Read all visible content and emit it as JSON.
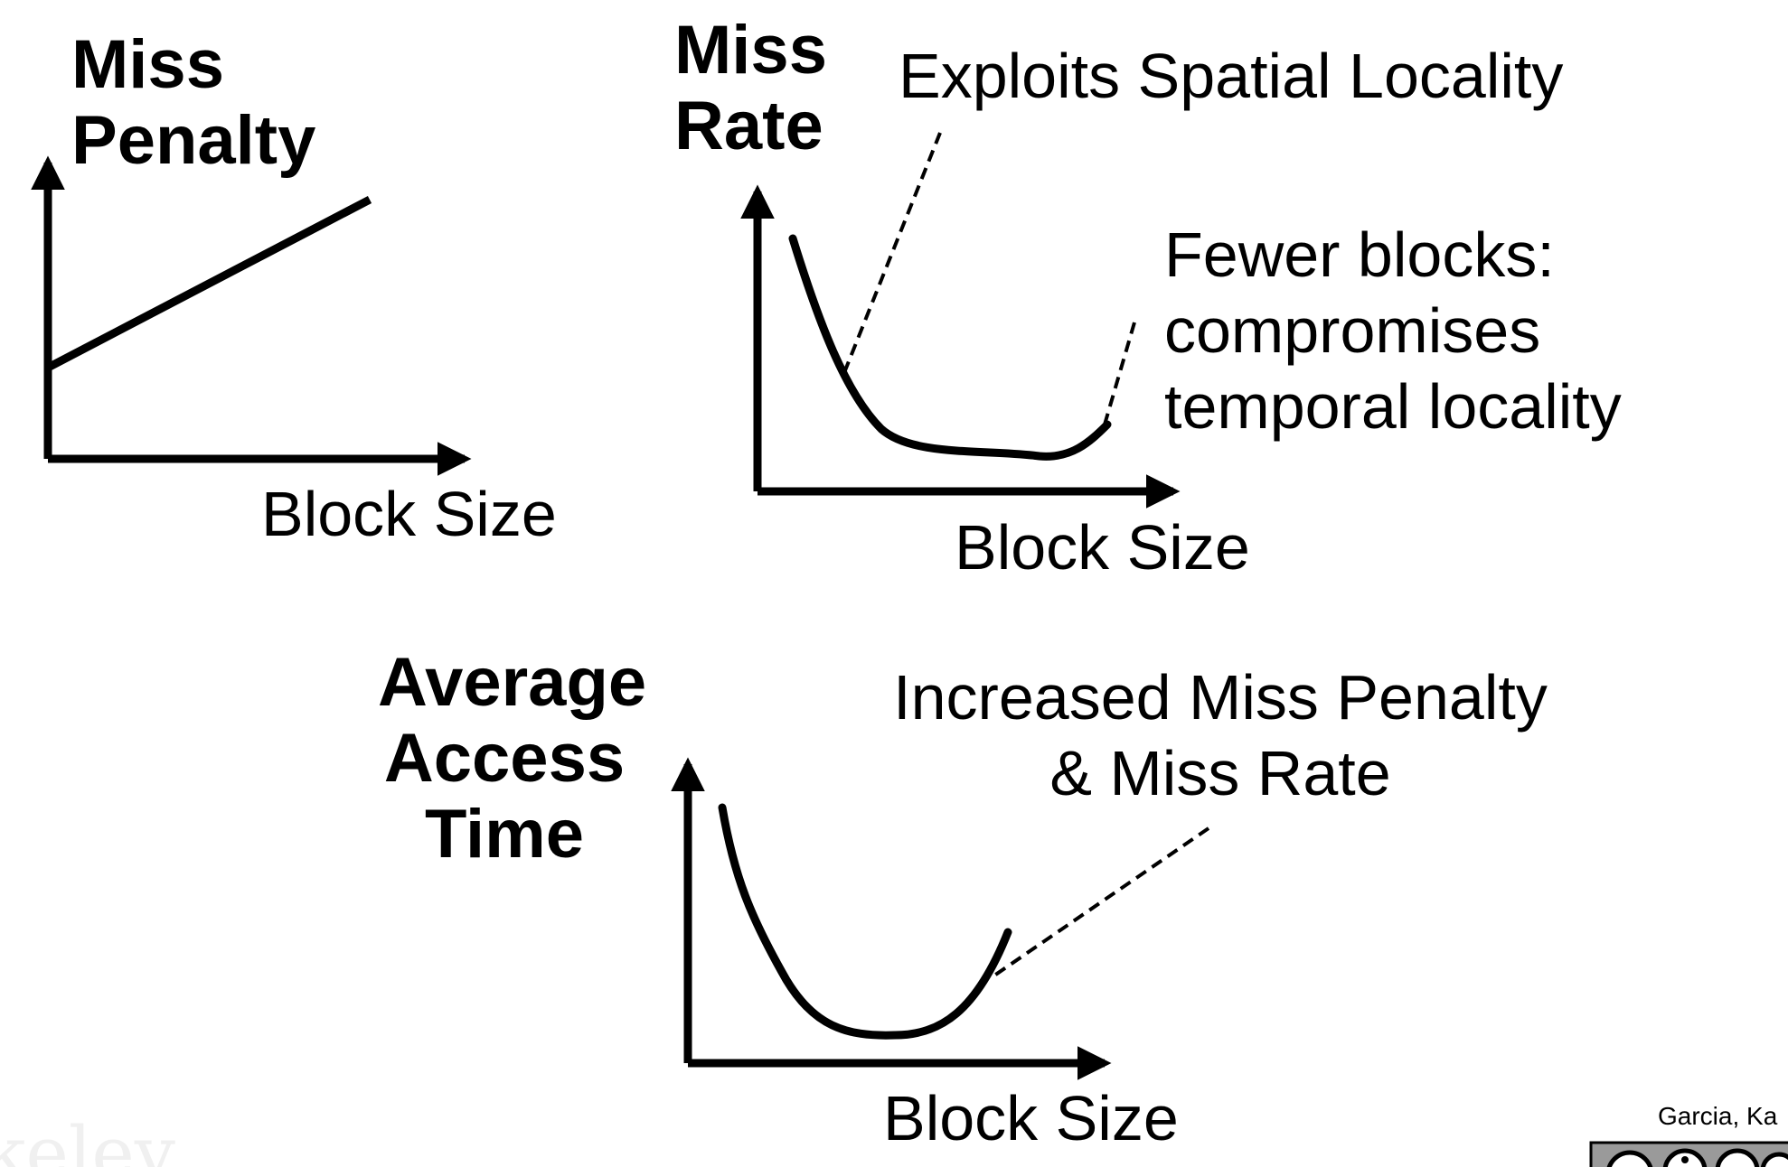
{
  "graphs": {
    "miss_penalty": {
      "ylabel_line1": "Miss",
      "ylabel_line2": "Penalty",
      "xlabel": "Block Size"
    },
    "miss_rate": {
      "ylabel_line1": "Miss",
      "ylabel_line2": "Rate",
      "xlabel": "Block Size",
      "annotation_spatial": "Exploits Spatial Locality",
      "annotation_fewer_line1": "Fewer blocks:",
      "annotation_fewer_line2": "compromises",
      "annotation_fewer_line3": "temporal locality"
    },
    "avg_access_time": {
      "ylabel_line1": "Average",
      "ylabel_line2": "Access",
      "ylabel_line3": "Time",
      "xlabel": "Block Size",
      "annotation_line1": "Increased Miss Penalty",
      "annotation_line2": "& Miss Rate"
    }
  },
  "footer": {
    "credit": "Garcia, Ka",
    "watermark": "keley"
  },
  "colors": {
    "ink": "#000000",
    "watermark": "#f0f0f0"
  }
}
